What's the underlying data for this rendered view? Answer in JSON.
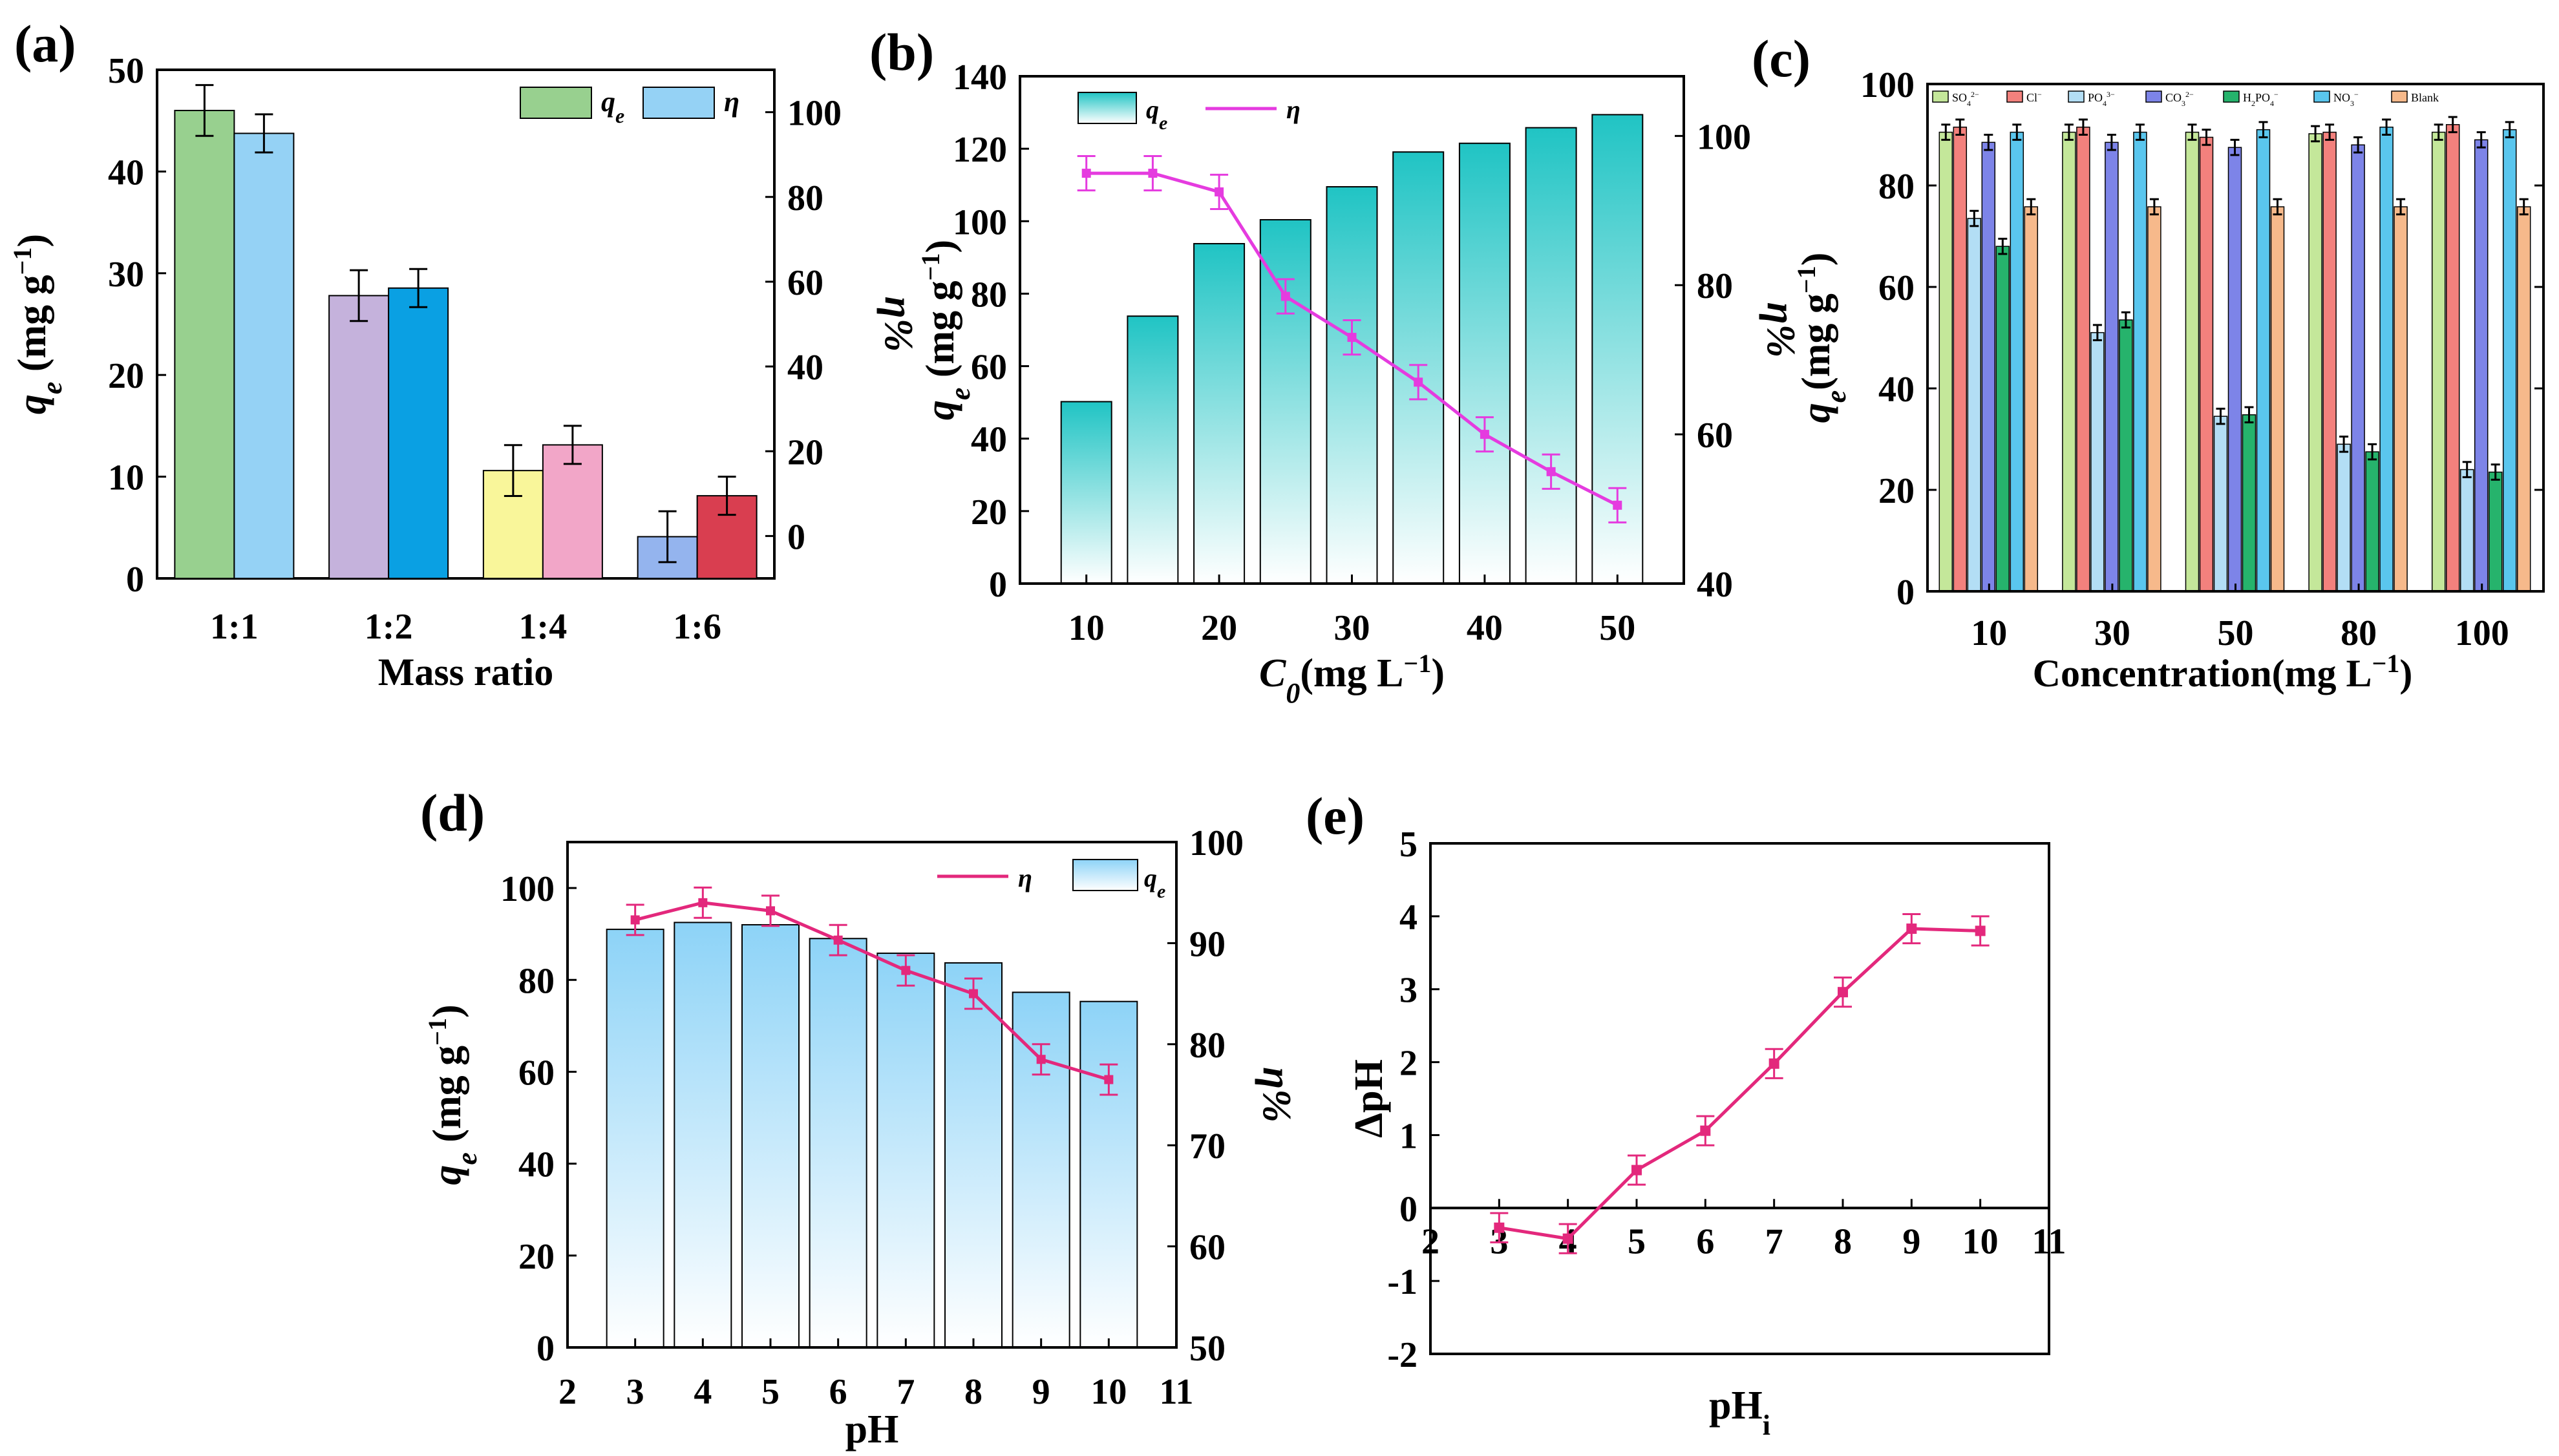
{
  "chart_data": [
    {
      "id": "a",
      "type": "bar",
      "panel_label": "(a)",
      "xlabel": "Mass ratio",
      "ylabel_left": "q",
      "ylabel_left_sub": "e",
      "ylabel_left_unit": " (mg g",
      "ylabel_left_sup": "−1",
      "ylabel_left_close": ")",
      "ylabel_right": "η%",
      "categories": [
        "1:1",
        "1:2",
        "1:4",
        "1:6"
      ],
      "ylim_left": [
        0,
        50
      ],
      "yticks_left": [
        "0",
        "10",
        "20",
        "30",
        "40",
        "50"
      ],
      "ylim_right": [
        -10,
        110
      ],
      "yticks_right": [
        "0",
        "20",
        "40",
        "60",
        "80",
        "100"
      ],
      "series": [
        {
          "name": "q",
          "name_sub": "e",
          "axis": "left",
          "values": [
            46,
            27.8,
            10.6,
            4.1
          ],
          "errors": [
            2.5,
            2.5,
            2.5,
            2.5
          ],
          "colors": [
            "#98d08f",
            "#c5b2dc",
            "#f9f69a",
            "#94b4ee"
          ]
        },
        {
          "name": "η",
          "axis": "right",
          "values": [
            95,
            58.5,
            21.5,
            9.5
          ],
          "errors": [
            4.5,
            4.5,
            4.5,
            4.5
          ],
          "colors": [
            "#95d2f5",
            "#0aa0e3",
            "#f2a6c8",
            "#d93e50"
          ]
        }
      ],
      "legend": {
        "q_color": "#98d08f",
        "eta_color": "#95d2f5"
      }
    },
    {
      "id": "b",
      "type": "bar+line",
      "panel_label": "(b)",
      "xlabel": "C",
      "xlabel_sub": "0",
      "xlabel_unit": "(mg L",
      "xlabel_sup": "−1",
      "xlabel_close": ")",
      "ylabel_left": "q",
      "ylabel_left_sub": "e",
      "ylabel_left_unit": " (mg g",
      "ylabel_left_sup": "−1",
      "ylabel_left_close": ")",
      "ylabel_right": "η%",
      "xlim": [
        5,
        55
      ],
      "xticks": [
        "10",
        "20",
        "30",
        "40",
        "50"
      ],
      "ylim_left": [
        0,
        140
      ],
      "yticks_left": [
        "0",
        "20",
        "40",
        "60",
        "80",
        "100",
        "120",
        "140"
      ],
      "ylim_right": [
        40,
        108
      ],
      "yticks_right": [
        "40",
        "60",
        "80",
        "100"
      ],
      "bars": {
        "name": "q",
        "name_sub": "e",
        "x": [
          10,
          15,
          20,
          25,
          30,
          35,
          40,
          45,
          50
        ],
        "values": [
          50.2,
          73.8,
          93.8,
          100.4,
          109.5,
          119.1,
          121.5,
          125.8,
          129.4
        ],
        "color": "#20c4c4"
      },
      "line": {
        "name": "η",
        "x": [
          10,
          15,
          20,
          25,
          30,
          35,
          40,
          45,
          50
        ],
        "values": [
          95,
          95,
          92.5,
          78.5,
          73,
          67,
          60,
          55,
          50.5
        ],
        "errors": [
          2.3,
          2.3,
          2.3,
          2.3,
          2.3,
          2.3,
          2.3,
          2.3,
          2.3
        ],
        "color": "#e53bdf"
      }
    },
    {
      "id": "c",
      "type": "grouped-bar",
      "panel_label": "(c)",
      "xlabel": "Concentration(mg L",
      "xlabel_sup": "−1",
      "xlabel_close": ")",
      "ylabel_left": "q",
      "ylabel_left_sub": "e",
      "ylabel_left_unit": "(mg g",
      "ylabel_left_sup": "−1",
      "ylabel_left_close": ")",
      "categories": [
        "10",
        "30",
        "50",
        "80",
        "100"
      ],
      "ylim": [
        0,
        100
      ],
      "yticks": [
        "0",
        "20",
        "40",
        "60",
        "80",
        "100"
      ],
      "series": [
        {
          "name": "SO",
          "sub": "4",
          "sup": "2−",
          "color": "#c4e79a",
          "values": [
            90.5,
            90.5,
            90.5,
            90.2,
            90.5
          ],
          "errors": [
            1.5,
            1.5,
            1.5,
            1.5,
            1.5
          ]
        },
        {
          "name": "Cl",
          "sub": "",
          "sup": "−",
          "color": "#f3817d",
          "values": [
            91.5,
            91.5,
            89.5,
            90.5,
            92
          ],
          "errors": [
            1.5,
            1.5,
            1.5,
            1.5,
            1.5
          ]
        },
        {
          "name": "PO",
          "sub": "4",
          "sup": "3−",
          "color": "#b3def5",
          "values": [
            73.5,
            51,
            34.5,
            29,
            24
          ],
          "errors": [
            1.5,
            1.5,
            1.5,
            1.5,
            1.5
          ]
        },
        {
          "name": "CO",
          "sub": "3",
          "sup": "2−",
          "color": "#7d84e8",
          "values": [
            88.5,
            88.5,
            87.5,
            88,
            89
          ],
          "errors": [
            1.5,
            1.5,
            1.5,
            1.5,
            1.5
          ]
        },
        {
          "name": "H",
          "sub": "2",
          "mid": "PO",
          "sub2": "4",
          "sup": "−",
          "color": "#26b36c",
          "values": [
            68,
            53.5,
            34.8,
            27.5,
            23.5
          ],
          "errors": [
            1.5,
            1.5,
            1.5,
            1.5,
            1.5
          ]
        },
        {
          "name": "NO",
          "sub": "3",
          "sup": "−",
          "color": "#5ac6ee",
          "values": [
            90.5,
            90.5,
            91,
            91.5,
            91
          ],
          "errors": [
            1.5,
            1.5,
            1.5,
            1.5,
            1.5
          ]
        },
        {
          "name": "Blank",
          "sub": "",
          "sup": "",
          "color": "#f6b98b",
          "values": [
            75.8,
            75.8,
            75.8,
            75.8,
            75.8
          ],
          "errors": [
            1.5,
            1.5,
            1.5,
            1.5,
            1.5
          ]
        }
      ]
    },
    {
      "id": "d",
      "type": "bar+line",
      "panel_label": "(d)",
      "xlabel": "pH",
      "ylabel_left": "q",
      "ylabel_left_sub": "e",
      "ylabel_left_unit": " (mg g",
      "ylabel_left_sup": "−1",
      "ylabel_left_close": ")",
      "ylabel_right": "η%",
      "xlim": [
        2,
        11
      ],
      "xticks": [
        "2",
        "3",
        "4",
        "5",
        "6",
        "7",
        "8",
        "9",
        "10",
        "11"
      ],
      "ylim_left": [
        0,
        110
      ],
      "yticks_left": [
        "0",
        "20",
        "40",
        "60",
        "80",
        "100"
      ],
      "ylim_right": [
        50,
        100
      ],
      "yticks_right": [
        "50",
        "60",
        "70",
        "80",
        "90",
        "100"
      ],
      "bars": {
        "name": "q",
        "name_sub": "e",
        "x": [
          3,
          4,
          5,
          6,
          7,
          8,
          9,
          10
        ],
        "values": [
          91,
          92.5,
          92,
          89,
          85.8,
          83.7,
          77.3,
          75.3
        ],
        "color": "#8dd3f7"
      },
      "line": {
        "name": "η",
        "x": [
          3,
          4,
          5,
          6,
          7,
          8,
          9,
          10
        ],
        "values": [
          92.3,
          94,
          93.2,
          90.3,
          87.3,
          85,
          78.5,
          76.5
        ],
        "errors": [
          1.5,
          1.5,
          1.5,
          1.5,
          1.5,
          1.5,
          1.5,
          1.5
        ],
        "color": "#e3287c"
      }
    },
    {
      "id": "e",
      "type": "line",
      "panel_label": "(e)",
      "xlabel": "pH",
      "xlabel_sub": "i",
      "ylabel": "ΔpH",
      "xlim": [
        2,
        11
      ],
      "xticks": [
        "2",
        "3",
        "4",
        "5",
        "6",
        "7",
        "8",
        "9",
        "10",
        "11"
      ],
      "ylim": [
        -2,
        5
      ],
      "yticks": [
        "-2",
        "-1",
        "0",
        "1",
        "2",
        "3",
        "4",
        "5"
      ],
      "series": [
        {
          "name": "ΔpH",
          "x": [
            3,
            4,
            5,
            6,
            7,
            8,
            9,
            10
          ],
          "values": [
            -0.27,
            -0.42,
            0.52,
            1.06,
            1.98,
            2.96,
            3.83,
            3.8
          ],
          "errors": [
            0.2,
            0.2,
            0.2,
            0.2,
            0.2,
            0.2,
            0.2,
            0.2
          ],
          "color": "#e3287c"
        }
      ]
    }
  ]
}
